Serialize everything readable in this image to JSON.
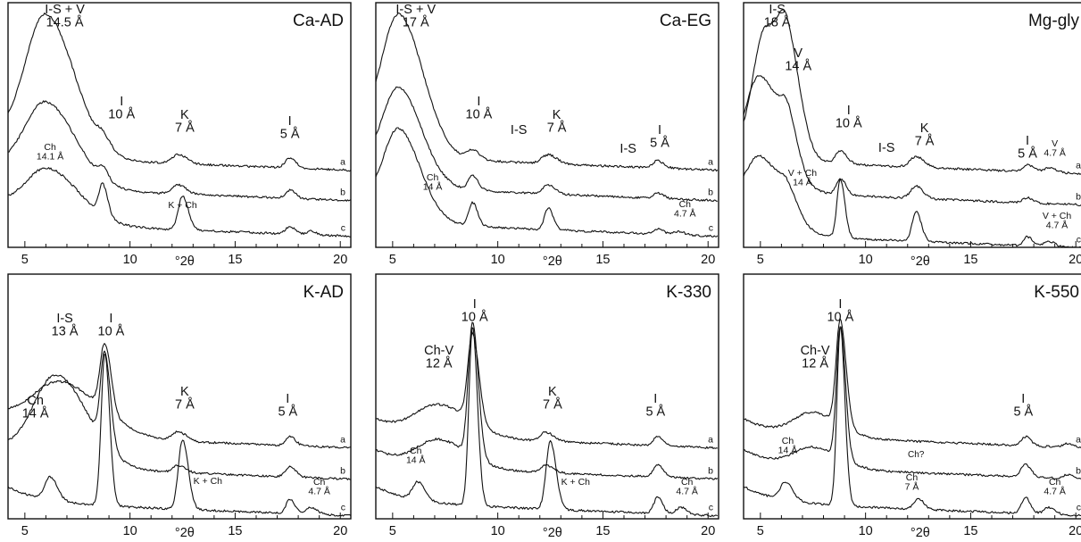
{
  "chart_data": [
    {
      "id": "ca-ad",
      "type": "line",
      "title": "Ca-AD",
      "xlabel": "°2θ",
      "xlim": [
        4.2,
        20.5
      ],
      "xticks": [
        5,
        10,
        15,
        20
      ],
      "series": [
        {
          "label": "a",
          "base": 176,
          "peaks": [
            [
              6.0,
              156,
              1.0
            ],
            [
              8.7,
              12,
              0.28
            ],
            [
              12.3,
              10,
              0.3
            ],
            [
              17.6,
              11,
              0.22
            ]
          ]
        },
        {
          "label": "b",
          "base": 210,
          "peaks": [
            [
              6.0,
              92,
              1.05
            ],
            [
              8.7,
              13,
              0.2
            ],
            [
              12.3,
              10,
              0.28
            ],
            [
              17.6,
              9,
              0.2
            ]
          ]
        },
        {
          "label": "c",
          "base": 250,
          "peaks": [
            [
              6.1,
              58,
              1.1
            ],
            [
              8.7,
              35,
              0.18
            ],
            [
              12.5,
              38,
              0.2
            ],
            [
              17.6,
              8,
              0.2
            ],
            [
              18.6,
              4,
              0.2
            ]
          ]
        }
      ],
      "annotations": [
        {
          "lines": [
            "I-S + V",
            "14.5 Å"
          ],
          "x": 6.9,
          "y": 15,
          "size": "ann"
        },
        {
          "lines": [
            "I",
            "10 Å"
          ],
          "x": 9.6,
          "y": 118,
          "size": "ann"
        },
        {
          "lines": [
            "K",
            "7 Å"
          ],
          "x": 12.6,
          "y": 133,
          "size": "ann"
        },
        {
          "lines": [
            "I",
            "5 Å"
          ],
          "x": 17.6,
          "y": 140,
          "size": "ann"
        },
        {
          "lines": [
            "Ch",
            "14.1 Å"
          ],
          "x": 6.2,
          "y": 168,
          "size": "ann-small"
        },
        {
          "lines": [
            "K + Ch"
          ],
          "x": 12.5,
          "y": 233,
          "size": "ann-small"
        }
      ]
    },
    {
      "id": "ca-eg",
      "type": "line",
      "title": "Ca-EG",
      "xlabel": "°2θ",
      "xlim": [
        4.2,
        20.5
      ],
      "xticks": [
        5,
        10,
        15,
        20
      ],
      "series": [
        {
          "label": "a",
          "base": 176,
          "peaks": [
            [
              5.3,
              152,
              0.85
            ],
            [
              8.8,
              10,
              0.25
            ],
            [
              12.4,
              10,
              0.3
            ],
            [
              17.6,
              8,
              0.22
            ]
          ]
        },
        {
          "label": "b",
          "base": 210,
          "peaks": [
            [
              5.3,
              104,
              0.8
            ],
            [
              8.8,
              16,
              0.2
            ],
            [
              12.4,
              10,
              0.25
            ],
            [
              17.6,
              6,
              0.2
            ]
          ]
        },
        {
          "label": "c",
          "base": 250,
          "peaks": [
            [
              5.3,
              98,
              0.75
            ],
            [
              8.8,
              26,
              0.18
            ],
            [
              12.4,
              24,
              0.18
            ],
            [
              17.6,
              6,
              0.2
            ],
            [
              18.6,
              4,
              0.2
            ]
          ]
        }
      ],
      "annotations": [
        {
          "lines": [
            "I-S + V",
            "17 Å"
          ],
          "x": 6.1,
          "y": 15,
          "size": "ann"
        },
        {
          "lines": [
            "I",
            "10 Å"
          ],
          "x": 9.1,
          "y": 118,
          "size": "ann"
        },
        {
          "lines": [
            "I-S"
          ],
          "x": 11.0,
          "y": 150,
          "size": "ann"
        },
        {
          "lines": [
            "K",
            "7 Å"
          ],
          "x": 12.8,
          "y": 133,
          "size": "ann"
        },
        {
          "lines": [
            "I-S"
          ],
          "x": 16.2,
          "y": 171,
          "size": "ann"
        },
        {
          "lines": [
            "I",
            "5 Å"
          ],
          "x": 17.7,
          "y": 150,
          "size": "ann"
        },
        {
          "lines": [
            "Ch",
            "14 Å"
          ],
          "x": 6.9,
          "y": 202,
          "size": "ann-small"
        },
        {
          "lines": [
            "Ch",
            "4.7 Å"
          ],
          "x": 18.9,
          "y": 232,
          "size": "ann-small"
        }
      ]
    },
    {
      "id": "mg-gly",
      "type": "line",
      "title": "Mg-gly",
      "xlabel": "°2θ",
      "xlim": [
        4.2,
        20.5
      ],
      "xticks": [
        5,
        10,
        15,
        20
      ],
      "series": [
        {
          "label": "a",
          "base": 180,
          "peaks": [
            [
              5.2,
              135,
              0.55
            ],
            [
              6.3,
              110,
              0.45
            ],
            [
              8.8,
              14,
              0.22
            ],
            [
              12.4,
              12,
              0.28
            ],
            [
              17.7,
              8,
              0.2
            ],
            [
              18.7,
              5,
              0.25
            ]
          ]
        },
        {
          "label": "b",
          "base": 215,
          "peaks": [
            [
              5.0,
              120,
              0.75
            ],
            [
              6.3,
              45,
              0.35
            ],
            [
              8.8,
              18,
              0.2
            ],
            [
              12.4,
              14,
              0.25
            ],
            [
              17.7,
              6,
              0.2
            ]
          ]
        },
        {
          "label": "c",
          "base": 263,
          "peaks": [
            [
              5.0,
              78,
              0.8
            ],
            [
              6.3,
              20,
              0.35
            ],
            [
              8.8,
              65,
              0.16
            ],
            [
              12.4,
              34,
              0.18
            ],
            [
              17.7,
              10,
              0.18
            ],
            [
              18.7,
              6,
              0.22
            ]
          ]
        }
      ],
      "annotations": [
        {
          "lines": [
            "I-S",
            "18 Å"
          ],
          "x": 5.8,
          "y": 15,
          "size": "ann"
        },
        {
          "lines": [
            "V",
            "14 Å"
          ],
          "x": 6.8,
          "y": 64,
          "size": "ann"
        },
        {
          "lines": [
            "I",
            "10 Å"
          ],
          "x": 9.2,
          "y": 128,
          "size": "ann"
        },
        {
          "lines": [
            "I-S"
          ],
          "x": 11.0,
          "y": 170,
          "size": "ann"
        },
        {
          "lines": [
            "K",
            "7 Å"
          ],
          "x": 12.8,
          "y": 148,
          "size": "ann"
        },
        {
          "lines": [
            "I",
            "5 Å"
          ],
          "x": 17.7,
          "y": 162,
          "size": "ann"
        },
        {
          "lines": [
            "V",
            "4.7 Å"
          ],
          "x": 19.0,
          "y": 164,
          "size": "ann-small"
        },
        {
          "lines": [
            "V + Ch",
            "14 Å"
          ],
          "x": 7.0,
          "y": 197,
          "size": "ann-small"
        },
        {
          "lines": [
            "V + Ch",
            "4.7 Å"
          ],
          "x": 19.1,
          "y": 245,
          "size": "ann-small"
        }
      ]
    },
    {
      "id": "k-ad",
      "type": "line",
      "title": "K-AD",
      "xlabel": "°2θ",
      "xlim": [
        4.2,
        20.5
      ],
      "xticks": [
        5,
        10,
        15,
        20
      ],
      "series": [
        {
          "label": "a",
          "base": 487,
          "peaks": [
            [
              6.7,
              58,
              1.4
            ],
            [
              8.8,
              75,
              0.22
            ],
            [
              12.3,
              10,
              0.28
            ],
            [
              17.6,
              10,
              0.2
            ]
          ]
        },
        {
          "label": "b",
          "base": 522,
          "peaks": [
            [
              6.5,
              100,
              1.1
            ],
            [
              8.8,
              102,
              0.2
            ],
            [
              12.3,
              8,
              0.25
            ],
            [
              17.6,
              12,
              0.2
            ]
          ]
        },
        {
          "label": "c",
          "base": 563,
          "peaks": [
            [
              6.2,
              26,
              0.25
            ],
            [
              8.8,
              170,
              0.17
            ],
            [
              12.5,
              78,
              0.2
            ],
            [
              17.6,
              16,
              0.18
            ],
            [
              18.6,
              8,
              0.22
            ]
          ]
        }
      ],
      "annotations": [
        {
          "lines": [
            "I-S",
            "13 Å"
          ],
          "x": 6.9,
          "y": 361,
          "size": "ann"
        },
        {
          "lines": [
            "I",
            "10 Å"
          ],
          "x": 9.1,
          "y": 361,
          "size": "ann"
        },
        {
          "lines": [
            "Ch",
            "14 Å"
          ],
          "x": 5.5,
          "y": 453,
          "size": "ann"
        },
        {
          "lines": [
            "K",
            "7 Å"
          ],
          "x": 12.6,
          "y": 443,
          "size": "ann"
        },
        {
          "lines": [
            "I",
            "5 Å"
          ],
          "x": 17.5,
          "y": 451,
          "size": "ann"
        },
        {
          "lines": [
            "K + Ch"
          ],
          "x": 13.7,
          "y": 542,
          "size": "ann-small"
        },
        {
          "lines": [
            "Ch",
            "4.7 Å"
          ],
          "x": 19.0,
          "y": 543,
          "size": "ann-small"
        }
      ]
    },
    {
      "id": "k-330",
      "type": "line",
      "title": "K-330",
      "xlabel": "°2θ",
      "xlim": [
        4.2,
        20.5
      ],
      "xticks": [
        5,
        10,
        15,
        20
      ],
      "series": [
        {
          "label": "a",
          "base": 487,
          "peaks": [
            [
              7.2,
              34,
              1.1
            ],
            [
              8.8,
              98,
              0.22
            ],
            [
              12.3,
              10,
              0.28
            ],
            [
              17.6,
              10,
              0.2
            ]
          ]
        },
        {
          "label": "b",
          "base": 522,
          "peaks": [
            [
              7.2,
              30,
              1.0
            ],
            [
              8.8,
              150,
              0.2
            ],
            [
              12.3,
              8,
              0.25
            ],
            [
              17.6,
              14,
              0.2
            ]
          ]
        },
        {
          "label": "c",
          "base": 563,
          "peaks": [
            [
              6.2,
              20,
              0.25
            ],
            [
              8.8,
              200,
              0.17
            ],
            [
              12.5,
              76,
              0.2
            ],
            [
              17.6,
              18,
              0.18
            ],
            [
              18.7,
              8,
              0.22
            ]
          ]
        }
      ],
      "annotations": [
        {
          "lines": [
            "I",
            "10 Å"
          ],
          "x": 8.9,
          "y": 345,
          "size": "ann"
        },
        {
          "lines": [
            "Ch-V",
            "12 Å"
          ],
          "x": 7.2,
          "y": 397,
          "size": "ann"
        },
        {
          "lines": [
            "K",
            "7 Å"
          ],
          "x": 12.6,
          "y": 443,
          "size": "ann"
        },
        {
          "lines": [
            "I",
            "5 Å"
          ],
          "x": 17.5,
          "y": 451,
          "size": "ann"
        },
        {
          "lines": [
            "Ch",
            "14 Å"
          ],
          "x": 6.1,
          "y": 508,
          "size": "ann-small"
        },
        {
          "lines": [
            "K + Ch"
          ],
          "x": 13.7,
          "y": 543,
          "size": "ann-small"
        },
        {
          "lines": [
            "Ch",
            "4.7 Å"
          ],
          "x": 19.0,
          "y": 543,
          "size": "ann-small"
        }
      ]
    },
    {
      "id": "k-550",
      "type": "line",
      "title": "K-550",
      "xlabel": "°2θ",
      "xlim": [
        4.2,
        20.5
      ],
      "xticks": [
        5,
        10,
        15,
        20
      ],
      "series": [
        {
          "label": "a",
          "base": 487,
          "peaks": [
            [
              7.5,
              26,
              0.9
            ],
            [
              8.8,
              118,
              0.2
            ],
            [
              17.6,
              10,
              0.2
            ],
            [
              19.6,
              4,
              0.2
            ]
          ]
        },
        {
          "label": "b",
          "base": 522,
          "peaks": [
            [
              7.5,
              22,
              0.9
            ],
            [
              8.8,
              148,
              0.18
            ],
            [
              17.6,
              14,
              0.2
            ],
            [
              19.6,
              4,
              0.2
            ]
          ]
        },
        {
          "label": "c",
          "base": 563,
          "peaks": [
            [
              6.2,
              20,
              0.25
            ],
            [
              8.8,
              200,
              0.16
            ],
            [
              12.5,
              12,
              0.2
            ],
            [
              17.6,
              18,
              0.18
            ],
            [
              18.7,
              8,
              0.22
            ]
          ]
        }
      ],
      "annotations": [
        {
          "lines": [
            "I",
            "10 Å"
          ],
          "x": 8.8,
          "y": 345,
          "size": "ann"
        },
        {
          "lines": [
            "Ch-V",
            "12 Å"
          ],
          "x": 7.6,
          "y": 397,
          "size": "ann"
        },
        {
          "lines": [
            "I",
            "5 Å"
          ],
          "x": 17.5,
          "y": 451,
          "size": "ann"
        },
        {
          "lines": [
            "Ch",
            "14 Å"
          ],
          "x": 6.3,
          "y": 497,
          "size": "ann-small"
        },
        {
          "lines": [
            "Ch?"
          ],
          "x": 12.4,
          "y": 512,
          "size": "ann-tiny"
        },
        {
          "lines": [
            "Ch",
            "7 Å"
          ],
          "x": 12.2,
          "y": 538,
          "size": "ann-small"
        },
        {
          "lines": [
            "Ch",
            "4.7 Å"
          ],
          "x": 19.0,
          "y": 543,
          "size": "ann-small"
        }
      ]
    }
  ]
}
